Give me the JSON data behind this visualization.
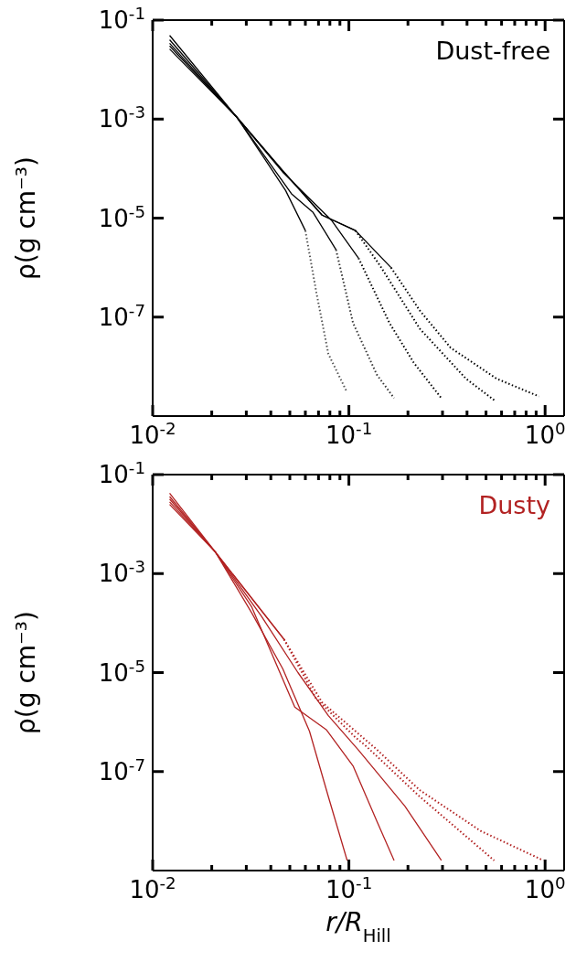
{
  "chart_data": [
    {
      "type": "line",
      "annotations": [
        "Dust-free"
      ],
      "ylabel": "ρ(g cm⁻³)",
      "log": "xy",
      "xlim": [
        0.01,
        1.25
      ],
      "ylim": [
        1e-09,
        0.1
      ],
      "xticks": [
        {
          "value": 0.01,
          "label": "10$^{-2}$"
        },
        {
          "value": 0.02,
          "label": null
        },
        {
          "value": 0.03,
          "label": null
        },
        {
          "value": 0.04,
          "label": null
        },
        {
          "value": 0.05,
          "label": null
        },
        {
          "value": 0.06,
          "label": null
        },
        {
          "value": 0.07,
          "label": null
        },
        {
          "value": 0.08,
          "label": null
        },
        {
          "value": 0.09,
          "label": null
        },
        {
          "value": 0.1,
          "label": "10$^{-1}$"
        },
        {
          "value": 0.2,
          "label": null
        },
        {
          "value": 0.3,
          "label": null
        },
        {
          "value": 0.4,
          "label": null
        },
        {
          "value": 0.5,
          "label": null
        },
        {
          "value": 0.6,
          "label": null
        },
        {
          "value": 0.7,
          "label": null
        },
        {
          "value": 0.8,
          "label": null
        },
        {
          "value": 0.9,
          "label": null
        },
        {
          "value": 1,
          "label": "10$^{0}$"
        }
      ],
      "yticks": [
        {
          "value": 0.1,
          "label": "10$^{-1}$"
        },
        {
          "value": 0.001,
          "label": "10$^{-3}$"
        },
        {
          "value": 1e-05,
          "label": "10$^{-5}$"
        },
        {
          "value": 1e-07,
          "label": "10$^{-7}$"
        }
      ],
      "series": [
        {
          "color": "#000000",
          "line_style": "solid",
          "x": [
            0.0122,
            0.0268,
            0.0384,
            0.0476,
            0.06
          ],
          "values": [
            0.026,
            0.0011,
            0.00013,
            3.6e-05,
            5.6e-06
          ]
        },
        {
          "color": "#555555",
          "line_style": "dotted",
          "x": [
            0.06,
            0.0682,
            0.0786,
            0.0968
          ],
          "values": [
            5.6e-06,
            3.2e-07,
            1.8e-08,
            3.3e-09
          ]
        },
        {
          "color": "#000000",
          "line_style": "solid",
          "x": [
            0.0122,
            0.0268,
            0.0384,
            0.051,
            0.0657,
            0.086
          ],
          "values": [
            0.03,
            0.0011,
            0.00015,
            3.1e-05,
            1.3e-05,
            2.3e-06
          ]
        },
        {
          "color": "#333333",
          "line_style": "dotted",
          "x": [
            0.086,
            0.105,
            0.139,
            0.17
          ],
          "values": [
            2.3e-06,
            7.6e-08,
            6.8e-09,
            2.3e-09
          ]
        },
        {
          "color": "#000000",
          "line_style": "solid",
          "x": [
            0.0122,
            0.0268,
            0.046,
            0.0814,
            0.112
          ],
          "values": [
            0.034,
            0.0011,
            8.5e-05,
            9.1e-06,
            1.55e-06
          ]
        },
        {
          "color": "#000000",
          "line_style": "dotted",
          "x": [
            0.112,
            0.161,
            0.214,
            0.296
          ],
          "values": [
            1.55e-06,
            7.6e-08,
            1.2e-08,
            2.3e-09
          ]
        },
        {
          "color": "#000000",
          "line_style": "solid",
          "x": [
            0.0122,
            0.0268,
            0.046,
            0.073,
            0.108
          ],
          "values": [
            0.04,
            0.0011,
            9.1e-05,
            1.15e-05,
            5.6e-06
          ]
        },
        {
          "color": "#000000",
          "line_style": "dotted",
          "x": [
            0.108,
            0.144,
            0.23,
            0.395,
            0.55
          ],
          "values": [
            5.6e-06,
            1.1e-06,
            5.8e-08,
            5.7e-09,
            2.1e-09
          ]
        },
        {
          "color": "#000000",
          "line_style": "solid",
          "x": [
            0.0122,
            0.0268,
            0.046,
            0.073,
            0.108,
            0.164
          ],
          "values": [
            0.049,
            0.0011,
            9.1e-05,
            1.15e-05,
            5.6e-06,
            1e-06
          ]
        },
        {
          "color": "#000000",
          "line_style": "dotted",
          "x": [
            0.164,
            0.23,
            0.33,
            0.566,
            0.93
          ],
          "values": [
            1e-06,
            1.35e-07,
            2.4e-08,
            5.7e-09,
            2.5e-09
          ]
        }
      ]
    },
    {
      "type": "line",
      "annotations": [
        "Dusty"
      ],
      "ylabel": "ρ(g cm⁻³)",
      "xlabel": "r/R$_{Hill}$",
      "log": "xy",
      "xlim": [
        0.01,
        1.25
      ],
      "ylim": [
        1e-09,
        0.1
      ],
      "xticks": [
        {
          "value": 0.01,
          "label": "10$^{-2}$"
        },
        {
          "value": 0.02,
          "label": null
        },
        {
          "value": 0.03,
          "label": null
        },
        {
          "value": 0.04,
          "label": null
        },
        {
          "value": 0.05,
          "label": null
        },
        {
          "value": 0.06,
          "label": null
        },
        {
          "value": 0.07,
          "label": null
        },
        {
          "value": 0.08,
          "label": null
        },
        {
          "value": 0.09,
          "label": null
        },
        {
          "value": 0.1,
          "label": "10$^{-1}$"
        },
        {
          "value": 0.2,
          "label": null
        },
        {
          "value": 0.3,
          "label": null
        },
        {
          "value": 0.4,
          "label": null
        },
        {
          "value": 0.5,
          "label": null
        },
        {
          "value": 0.6,
          "label": null
        },
        {
          "value": 0.7,
          "label": null
        },
        {
          "value": 0.8,
          "label": null
        },
        {
          "value": 0.9,
          "label": null
        },
        {
          "value": 1,
          "label": "10$^{0}$"
        }
      ],
      "yticks": [
        {
          "value": 0.1,
          "label": "10$^{-1}$"
        },
        {
          "value": 0.001,
          "label": "10$^{-3}$"
        },
        {
          "value": 1e-05,
          "label": "10$^{-5}$"
        },
        {
          "value": 1e-07,
          "label": "10$^{-7}$"
        }
      ],
      "series": [
        {
          "color": "#b22222",
          "line_style": "solid",
          "x": [
            0.0122,
            0.0209,
            0.032,
            0.046,
            0.063,
            0.0786,
            0.098
          ],
          "values": [
            0.025,
            0.0027,
            0.00016,
            1.2e-05,
            6.5e-07,
            3.1e-08,
            1.6e-09
          ]
        },
        {
          "color": "#b22222",
          "line_style": "solid",
          "x": [
            0.0122,
            0.0209,
            0.032,
            0.053,
            0.077,
            0.105,
            0.139,
            0.17
          ],
          "values": [
            0.028,
            0.0027,
            0.00021,
            2e-06,
            6.9e-07,
            1.3e-07,
            9.8e-09,
            1.6e-09
          ]
        },
        {
          "color": "#b22222",
          "line_style": "solid",
          "x": [
            0.0122,
            0.0209,
            0.0357,
            0.055,
            0.0786,
            0.112,
            0.193,
            0.296
          ],
          "values": [
            0.032,
            0.0027,
            0.00014,
            1e-05,
            1.35e-06,
            2.7e-07,
            2e-08,
            1.6e-09
          ]
        },
        {
          "color": "#b22222",
          "line_style": "solid",
          "x": [
            0.0122,
            0.0209,
            0.0467
          ],
          "values": [
            0.036,
            0.0027,
            4.7e-05
          ]
        },
        {
          "color": "#b22222",
          "line_style": "dotted",
          "x": [
            0.0467,
            0.068,
            0.108,
            0.121,
            0.23,
            0.55
          ],
          "values": [
            4.7e-05,
            3e-06,
            4.9e-07,
            3.4e-07,
            3.1e-08,
            1.6e-09
          ]
        },
        {
          "color": "#b22222",
          "line_style": "solid",
          "x": [
            0.0122,
            0.0209,
            0.0467
          ],
          "values": [
            0.042,
            0.0027,
            4.7e-05
          ]
        },
        {
          "color": "#b22222",
          "line_style": "dotted",
          "x": [
            0.0467,
            0.073,
            0.14,
            0.23,
            0.47,
            0.98
          ],
          "values": [
            4.7e-05,
            2.5e-06,
            2.7e-07,
            4.2e-08,
            6.3e-09,
            1.6e-09
          ]
        }
      ]
    }
  ]
}
